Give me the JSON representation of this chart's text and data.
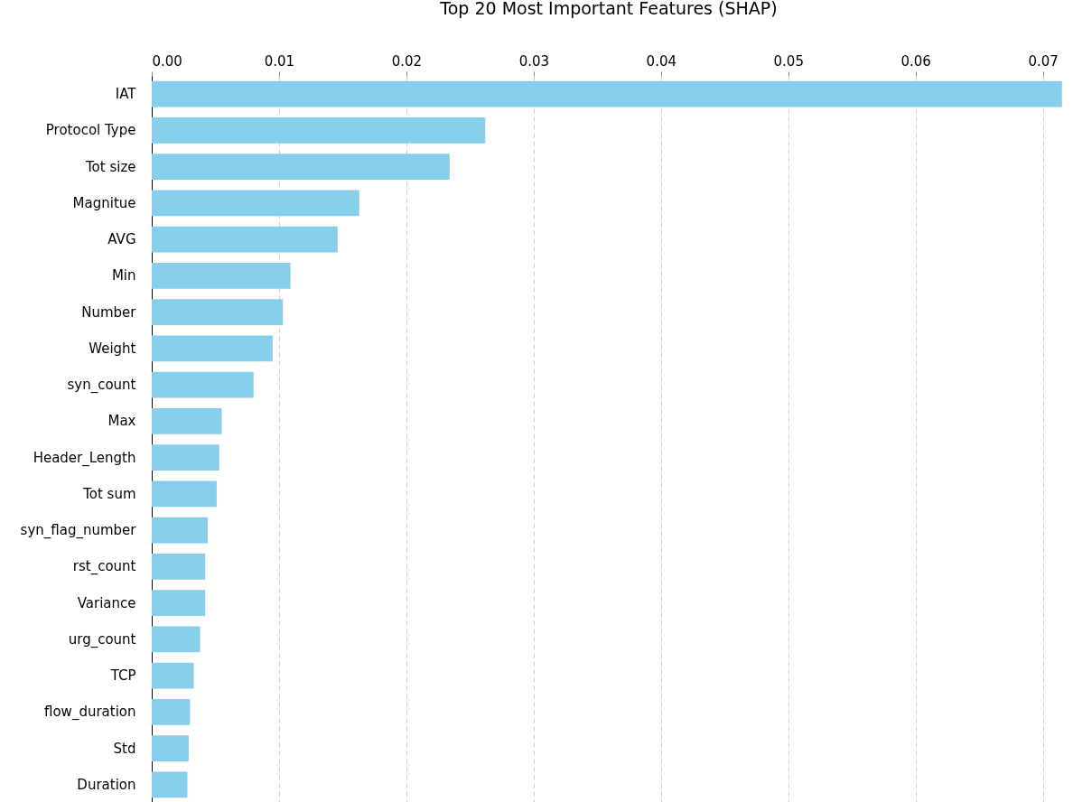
{
  "chart_data": {
    "type": "bar",
    "orientation": "horizontal",
    "title": "Top 20 Most Important Features (SHAP)",
    "categories": [
      "IAT",
      "Protocol Type",
      "Tot size",
      "Magnitue",
      "AVG",
      "Min",
      "Number",
      "Weight",
      "syn_count",
      "Max",
      "Header_Length",
      "Tot sum",
      "syn_flag_number",
      "rst_count",
      "Variance",
      "urg_count",
      "TCP",
      "flow_duration",
      "Std",
      "Duration"
    ],
    "values": [
      0.0715,
      0.0262,
      0.0234,
      0.0163,
      0.0146,
      0.0109,
      0.0103,
      0.0095,
      0.008,
      0.0055,
      0.0053,
      0.0051,
      0.0044,
      0.0042,
      0.0042,
      0.0038,
      0.0033,
      0.003,
      0.0029,
      0.0028
    ],
    "color": "#87ceeb",
    "xlim": [
      0,
      0.0718
    ],
    "xticks": [
      {
        "value": 0,
        "label": "0.00"
      },
      {
        "value": 0.01,
        "label": "0.01"
      },
      {
        "value": 0.02,
        "label": "0.02"
      },
      {
        "value": 0.03,
        "label": "0.03"
      },
      {
        "value": 0.04,
        "label": "0.04"
      },
      {
        "value": 0.05,
        "label": "0.05"
      },
      {
        "value": 0.06,
        "label": "0.06"
      },
      {
        "value": 0.07,
        "label": "0.07"
      }
    ],
    "grid": "x",
    "line_style": "dashed"
  }
}
